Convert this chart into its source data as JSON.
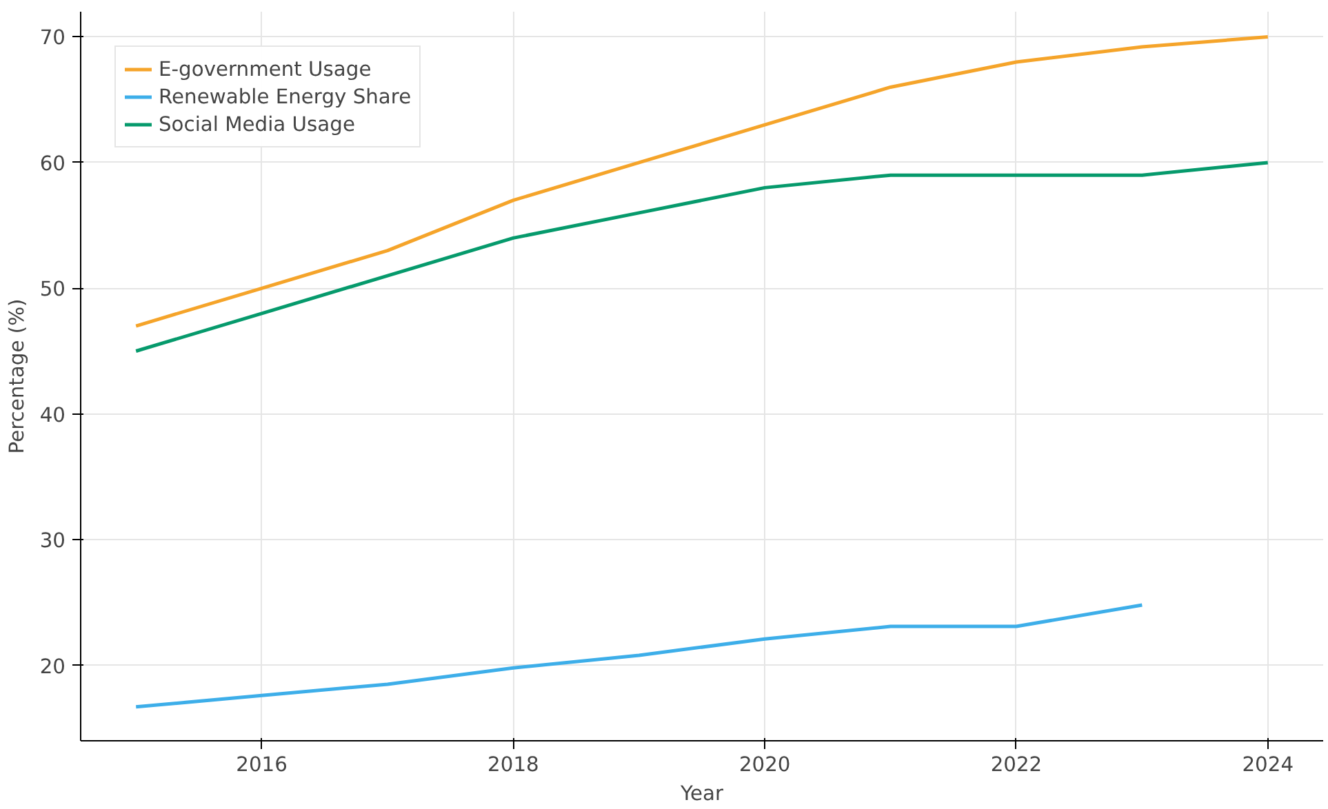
{
  "chart_data": {
    "type": "line",
    "xlabel": "Year",
    "ylabel": "Percentage (%)",
    "x": [
      2015,
      2016,
      2017,
      2018,
      2019,
      2020,
      2021,
      2022,
      2023,
      2024
    ],
    "series": [
      {
        "name": "E-government Usage",
        "color": "#f5a42a",
        "values": [
          47,
          50,
          53,
          57,
          60,
          63,
          66,
          68,
          69.2,
          70
        ]
      },
      {
        "name": "Renewable Energy Share",
        "color": "#3daee9",
        "values": [
          16.7,
          17.6,
          18.5,
          19.8,
          20.8,
          22.1,
          23.1,
          23.1,
          24.8,
          null
        ]
      },
      {
        "name": "Social Media Usage",
        "color": "#069a6c",
        "values": [
          45,
          48,
          51,
          54,
          56,
          58,
          59,
          59,
          59,
          60
        ]
      }
    ],
    "xlim": [
      2014.56,
      2024.44
    ],
    "ylim": [
      14,
      72
    ],
    "xticks": [
      2016,
      2018,
      2020,
      2022,
      2024
    ],
    "yticks": [
      20,
      30,
      40,
      50,
      60,
      70
    ],
    "grid": true,
    "legend": "top left",
    "marker": "none",
    "line_style": "solid"
  }
}
